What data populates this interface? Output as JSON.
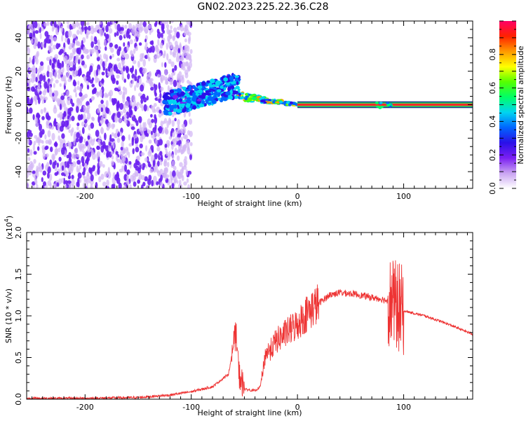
{
  "title": "GN02.2023.225.22.36.C28",
  "chart_data": [
    {
      "type": "heatmap",
      "xlabel": "Height of straight line (km)",
      "ylabel": "Frequency (Hz)",
      "xlim": [
        -255,
        165
      ],
      "ylim": [
        -50,
        50
      ],
      "x_ticks": [
        -200,
        -100,
        0,
        100
      ],
      "y_ticks": [
        -40,
        -20,
        0,
        20,
        40
      ],
      "colorbar": {
        "label": "Normalized spectral amplitude",
        "range": [
          0,
          1
        ],
        "ticks": [
          "0.0",
          "0.2",
          "0.4",
          "0.6",
          "0.8"
        ],
        "colors": [
          "#ffffff",
          "#c9a3f2",
          "#7b1ff2",
          "#2a10e8",
          "#0066ff",
          "#00d5f0",
          "#00ff66",
          "#55ff00",
          "#ffff00",
          "#ff9900",
          "#ff2200",
          "#ff0066"
        ]
      },
      "regions": [
        {
          "x_range": [
            -255,
            -125
          ],
          "freq_range": [
            -50,
            50
          ],
          "amplitude": 0.1,
          "description_color": "purple"
        },
        {
          "x_range": [
            -125,
            -55
          ],
          "freq_center": [
            0,
            12
          ],
          "amplitude": 0.25
        },
        {
          "x_range": [
            -55,
            0
          ],
          "freq_center": [
            5,
            0
          ],
          "amplitude": 0.5
        },
        {
          "x_range": [
            0,
            165
          ],
          "freq_center": [
            0,
            0
          ],
          "amplitude": 0.95
        }
      ]
    },
    {
      "type": "line",
      "xlabel": "Height of straight line (km)",
      "ylabel": "SNR (10 * v/v)",
      "y_scale_label": "(x10",
      "y_scale_exp": "4",
      "xlim": [
        -255,
        165
      ],
      "ylim": [
        0,
        2.0
      ],
      "x_ticks": [
        -200,
        -100,
        0,
        100
      ],
      "y_ticks": [
        "0.0",
        "0.5",
        "1.0",
        "1.5",
        "2.0"
      ],
      "color": "#ee3333",
      "envelope": [
        {
          "x": -255,
          "y": 0.01
        },
        {
          "x": -200,
          "y": 0.01
        },
        {
          "x": -150,
          "y": 0.02
        },
        {
          "x": -120,
          "y": 0.05
        },
        {
          "x": -100,
          "y": 0.09
        },
        {
          "x": -80,
          "y": 0.15
        },
        {
          "x": -65,
          "y": 0.3
        },
        {
          "x": -60,
          "y": 0.65
        },
        {
          "x": -58,
          "y": 0.8
        },
        {
          "x": -55,
          "y": 0.3
        },
        {
          "x": -50,
          "y": 0.12
        },
        {
          "x": -40,
          "y": 0.1
        },
        {
          "x": -35,
          "y": 0.15
        },
        {
          "x": -30,
          "y": 0.55
        },
        {
          "x": -25,
          "y": 0.6
        },
        {
          "x": -20,
          "y": 0.7
        },
        {
          "x": -10,
          "y": 0.8
        },
        {
          "x": 0,
          "y": 0.9
        },
        {
          "x": 10,
          "y": 1.05
        },
        {
          "x": 20,
          "y": 1.15
        },
        {
          "x": 30,
          "y": 1.25
        },
        {
          "x": 40,
          "y": 1.28
        },
        {
          "x": 55,
          "y": 1.26
        },
        {
          "x": 70,
          "y": 1.22
        },
        {
          "x": 80,
          "y": 1.2
        },
        {
          "x": 88,
          "y": 1.17
        },
        {
          "x": 95,
          "y": 1.1
        },
        {
          "x": 100,
          "y": 1.06
        },
        {
          "x": 120,
          "y": 1.0
        },
        {
          "x": 140,
          "y": 0.91
        },
        {
          "x": 165,
          "y": 0.78
        }
      ]
    }
  ]
}
